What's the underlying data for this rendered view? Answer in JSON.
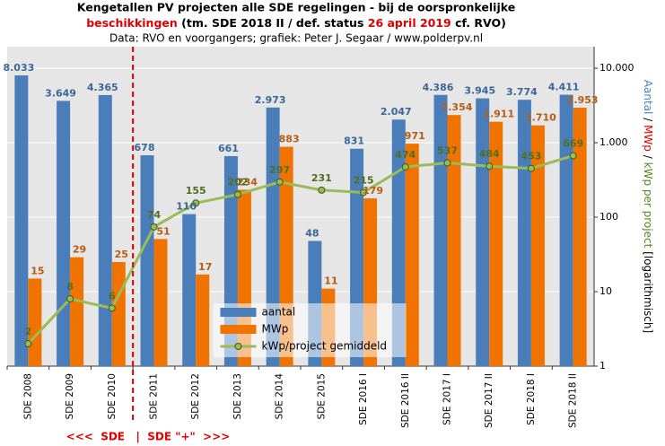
{
  "chart_data": {
    "type": "bar",
    "title": "Kengetallen PV projecten alle SDE regelingen - bij de oorspronkelijke",
    "subtitle_parts": [
      "beschikkingen",
      "(tm. SDE 2018 II / def. status",
      "26 april 2019",
      "cf. RVO)"
    ],
    "source": "Data: RVO en voorgangers; grafiek: Peter J. Segaar / www.polderpv.nl",
    "y_axis_label_parts": [
      "Aantal",
      "/",
      "MWp",
      "/",
      "kWp per project",
      "[logarithmisch]"
    ],
    "annotation": "<<<  SDE   |  SDE \"+\"  >>>",
    "categories": [
      "SDE 2008",
      "SDE 2009",
      "SDE 2010",
      "SDE 2011",
      "SDE 2012",
      "SDE 2013",
      "SDE 2014",
      "SDE 2015",
      "SDE 2016 I",
      "SDE 2016 II",
      "SDE 2017 I",
      "SDE 2017 II",
      "SDE 2018 I",
      "SDE 2018 II"
    ],
    "series": [
      {
        "name": "aantal",
        "type": "bar",
        "color": "#4a7ebb",
        "label_color": "#3a669a",
        "values": [
          8033,
          3649,
          4365,
          678,
          110,
          661,
          2973,
          48,
          831,
          2047,
          4386,
          3945,
          3774,
          4411
        ],
        "value_labels": [
          "8.033",
          "3.649",
          "4.365",
          "678",
          "110",
          "661",
          "2.973",
          "48",
          "831",
          "2.047",
          "4.386",
          "3.945",
          "3.774",
          "4.411"
        ]
      },
      {
        "name": "MWp",
        "type": "bar",
        "color": "#f07300",
        "label_color": "#b85c10",
        "values": [
          15,
          29,
          25,
          51,
          17,
          234,
          883,
          11,
          179,
          971,
          2354,
          1911,
          1710,
          2953
        ],
        "value_labels": [
          "15",
          "29",
          "25",
          "51",
          "17",
          "234",
          "883",
          "11",
          "179",
          "971",
          "2.354",
          "1.911",
          "1.710",
          "2.953"
        ]
      },
      {
        "name": "kWp/project gemiddeld",
        "type": "line",
        "color": "#9bbb59",
        "label_color": "#4f6e1f",
        "values": [
          2,
          8,
          6,
          74,
          155,
          202,
          297,
          231,
          215,
          474,
          537,
          484,
          453,
          669
        ]
      }
    ],
    "yscale": "log",
    "ylim": [
      1,
      19500
    ],
    "yticks": [
      1,
      10,
      100,
      {
        "value": 1000,
        "label": "1.000"
      },
      {
        "value": 10000,
        "label": "10.000"
      }
    ],
    "grid": true,
    "legend": "lower center"
  }
}
